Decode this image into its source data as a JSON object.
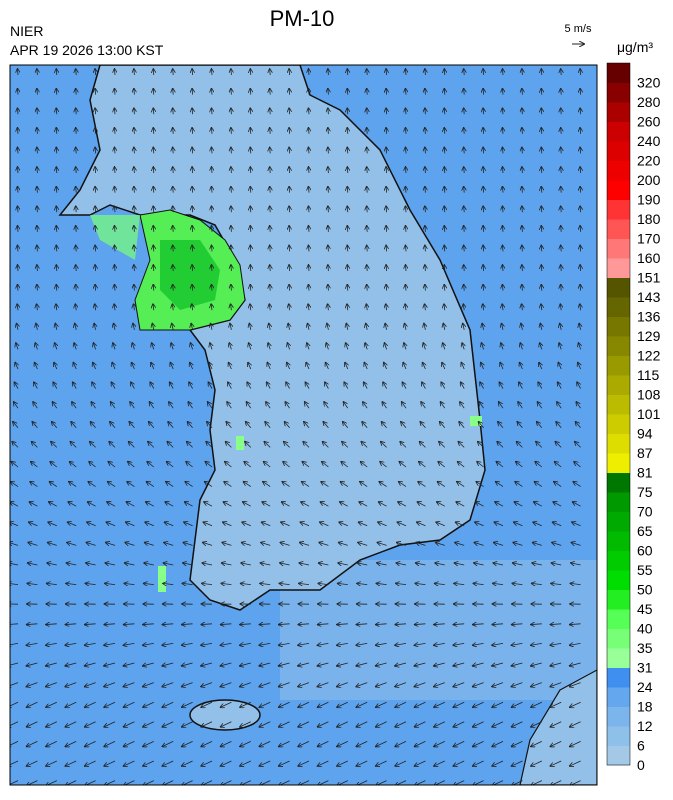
{
  "header": {
    "title": "PM-10",
    "agency": "NIER",
    "timestamp": "APR 19 2026 13:00 KST",
    "wind_scale": "5 m/s",
    "unit": "μg/m³"
  },
  "colorbar": {
    "levels": [
      0,
      6,
      12,
      18,
      24,
      31,
      35,
      40,
      45,
      50,
      55,
      60,
      65,
      70,
      75,
      81,
      87,
      94,
      101,
      108,
      115,
      122,
      129,
      136,
      143,
      151,
      160,
      170,
      180,
      190,
      200,
      220,
      240,
      260,
      280,
      320
    ],
    "colors": [
      "#a3c9e6",
      "#8ec0ea",
      "#7bb5ec",
      "#64a7ee",
      "#3f8ff0",
      "#99ff99",
      "#77ff77",
      "#55ff55",
      "#22ee22",
      "#00dd00",
      "#00cc00",
      "#00bb00",
      "#00aa00",
      "#009900",
      "#007700",
      "#eeee00",
      "#dddd00",
      "#cccc00",
      "#bbbb00",
      "#aaaa00",
      "#999900",
      "#888800",
      "#777700",
      "#666600",
      "#555500",
      "#ff9999",
      "#ff7777",
      "#ff5555",
      "#ff3333",
      "#ff0000",
      "#ee0000",
      "#dd0000",
      "#cc0000",
      "#aa0000",
      "#880000",
      "#660000"
    ]
  }
}
